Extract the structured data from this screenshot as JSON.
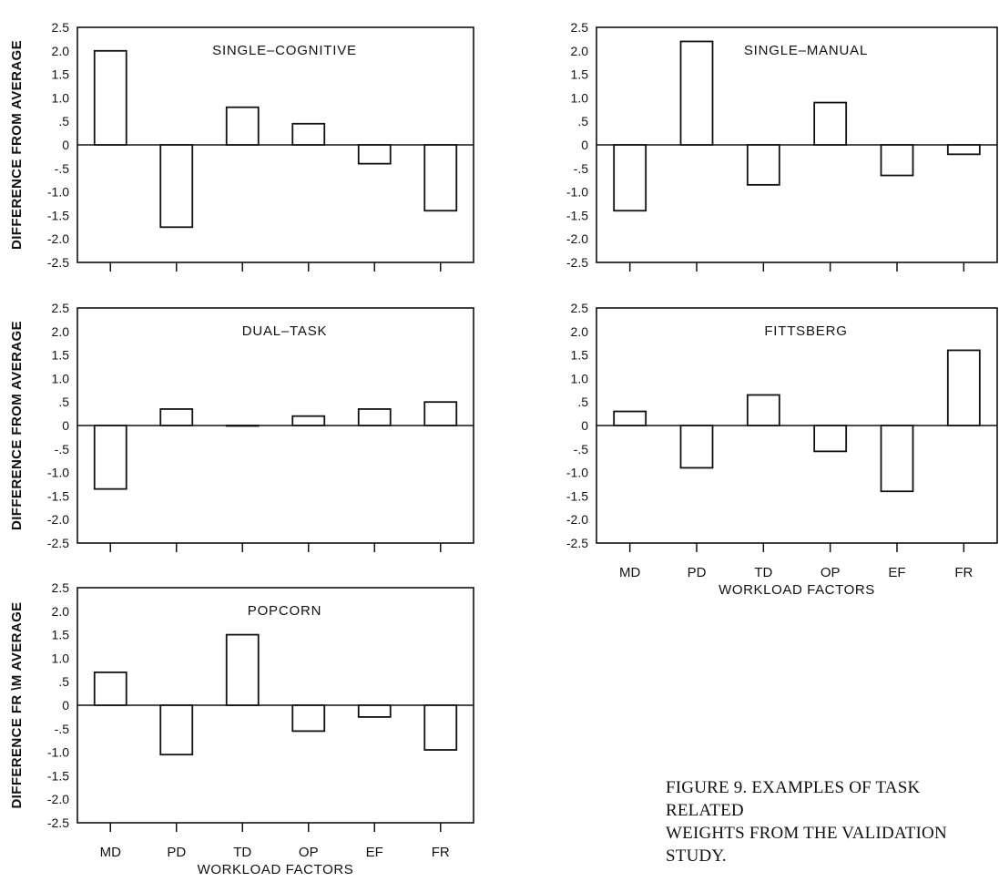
{
  "figure": {
    "caption_line1": "FIGURE 9. EXAMPLES OF TASK RELATED",
    "caption_line2": "WEIGHTS FROM THE VALIDATION STUDY."
  },
  "chart_data": [
    {
      "type": "bar",
      "title": "SINGLE–COGNITIVE",
      "ylabel": "DIFFERENCE FROM AVERAGE",
      "xlabel": "",
      "categories": [
        "MD",
        "PD",
        "TD",
        "OP",
        "EF",
        "FR"
      ],
      "values": [
        2.0,
        -1.75,
        0.8,
        0.45,
        -0.4,
        -1.4
      ],
      "ylim": [
        -2.5,
        2.5
      ],
      "yticks": [
        "2.5",
        "2.0",
        "1.5",
        "1.0",
        ".5",
        "0",
        "-.5",
        "-1.0",
        "-1.5",
        "-2.0",
        "-2.5"
      ],
      "show_category_labels": false
    },
    {
      "type": "bar",
      "title": "SINGLE–MANUAL",
      "ylabel": "",
      "xlabel": "",
      "categories": [
        "MD",
        "PD",
        "TD",
        "OP",
        "EF",
        "FR"
      ],
      "values": [
        -1.4,
        2.2,
        -0.85,
        0.9,
        -0.65,
        -0.2
      ],
      "ylim": [
        -2.5,
        2.5
      ],
      "yticks": [
        "2.5",
        "2.0",
        "1.5",
        "1.0",
        ".5",
        "0",
        "-.5",
        "-1.0",
        "-1.5",
        "-2.0",
        "-2.5"
      ],
      "show_category_labels": false
    },
    {
      "type": "bar",
      "title": "DUAL–TASK",
      "ylabel": "DIFFERENCE FROM AVERAGE",
      "xlabel": "",
      "categories": [
        "MD",
        "PD",
        "TD",
        "OP",
        "EF",
        "FR"
      ],
      "values": [
        -1.35,
        0.35,
        0.0,
        0.2,
        0.35,
        0.5
      ],
      "ylim": [
        -2.5,
        2.5
      ],
      "yticks": [
        "2.5",
        "2.0",
        "1.5",
        "1.0",
        ".5",
        "0",
        "-.5",
        "-1.0",
        "-1.5",
        "-2.0",
        "-2.5"
      ],
      "show_category_labels": false
    },
    {
      "type": "bar",
      "title": "FITTSBERG",
      "ylabel": "",
      "xlabel": "WORKLOAD FACTORS",
      "categories": [
        "MD",
        "PD",
        "TD",
        "OP",
        "EF",
        "FR"
      ],
      "values": [
        0.3,
        -0.9,
        0.65,
        -0.55,
        -1.4,
        1.6
      ],
      "ylim": [
        -2.5,
        2.5
      ],
      "yticks": [
        "2.5",
        "2.0",
        "1.5",
        "1.0",
        ".5",
        "0",
        "-.5",
        "-1.0",
        "-1.5",
        "-2.0",
        "-2.5"
      ],
      "show_category_labels": true
    },
    {
      "type": "bar",
      "title": "POPCORN",
      "ylabel": "DIFFERENCE FR \\M AVERAGE",
      "xlabel": "WORKLOAD FACTORS",
      "categories": [
        "MD",
        "PD",
        "TD",
        "OP",
        "EF",
        "FR"
      ],
      "values": [
        0.7,
        -1.05,
        1.5,
        -0.55,
        -0.25,
        -0.95
      ],
      "ylim": [
        -2.5,
        2.5
      ],
      "yticks": [
        "2.5",
        "2.0",
        "1.5",
        "1.0",
        ".5",
        "0",
        "-.5",
        "-1.0",
        "-1.5",
        "-2.0",
        "-2.5"
      ],
      "show_category_labels": true
    }
  ]
}
